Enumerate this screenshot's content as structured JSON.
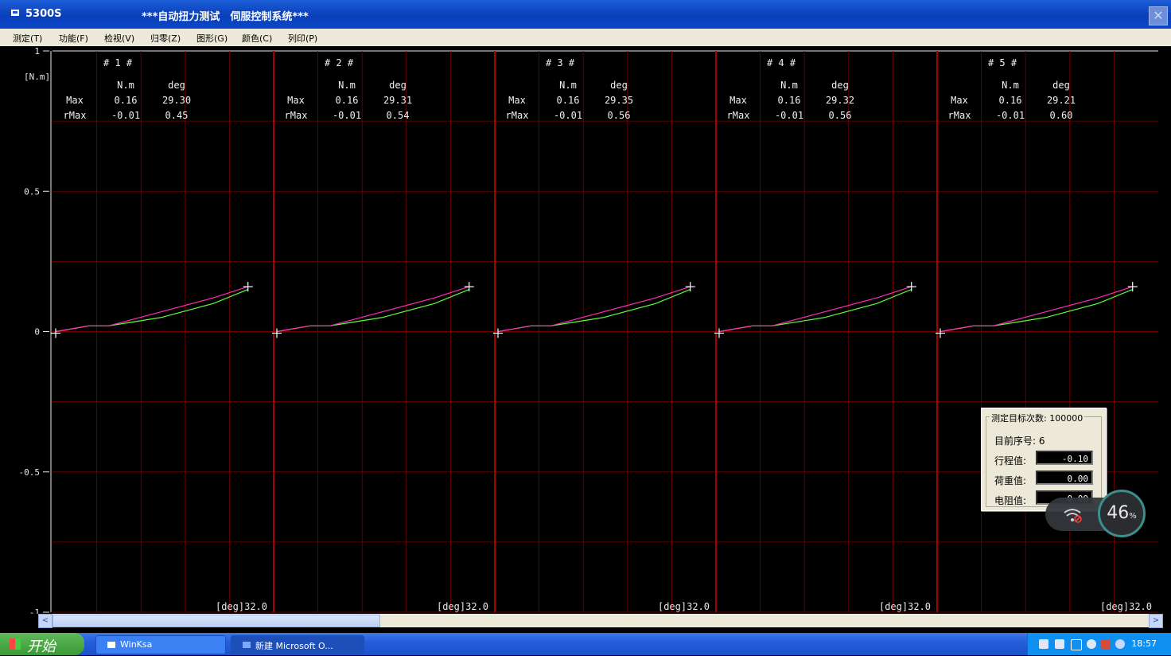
{
  "window": {
    "title": "5300S",
    "caption": "***自动扭力测试　伺服控制系统***",
    "close_glyph": "✕"
  },
  "menu": [
    "测定(T)",
    "功能(F)",
    "检视(V)",
    "归零(Z)",
    "图形(G)",
    "颜色(C)",
    "列印(P)"
  ],
  "plot": {
    "y_unit": "[N.m]",
    "y_ticks": [
      "1",
      "0.5",
      "0",
      "-0.5",
      "-1"
    ],
    "x_label": "[deg]32.0",
    "col_unit_torque": "N.m",
    "col_unit_angle": "deg",
    "row_max": "Max",
    "row_rmax": "rMax",
    "colors": {
      "grid": "#7a0000",
      "divider": "#a80000",
      "curve_a": "#ff2db4",
      "curve_b": "#5aff3a",
      "marker": "#ffffff"
    },
    "panels": [
      {
        "label": "# 1 #",
        "max_nm": "0.16",
        "max_deg": "29.30",
        "rmax_nm": "-0.01",
        "rmax_deg": "0.45"
      },
      {
        "label": "# 2 #",
        "max_nm": "0.16",
        "max_deg": "29.31",
        "rmax_nm": "-0.01",
        "rmax_deg": "0.54"
      },
      {
        "label": "# 3 #",
        "max_nm": "0.16",
        "max_deg": "29.35",
        "rmax_nm": "-0.01",
        "rmax_deg": "0.56"
      },
      {
        "label": "# 4 #",
        "max_nm": "0.16",
        "max_deg": "29.32",
        "rmax_nm": "-0.01",
        "rmax_deg": "0.56"
      },
      {
        "label": "# 5 #",
        "max_nm": "0.16",
        "max_deg": "29.21",
        "rmax_nm": "-0.01",
        "rmax_deg": "0.60"
      }
    ]
  },
  "chart_data": {
    "type": "line",
    "ylabel": "[N.m]",
    "ylim": [
      -1,
      1
    ],
    "xlabel": "[deg]32.0",
    "xlim": [
      0,
      32
    ],
    "series": [
      {
        "x": [
          0,
          5,
          8,
          16,
          24,
          29.3
        ],
        "y": [
          0,
          0.02,
          0.02,
          0.07,
          0.12,
          0.16
        ]
      },
      {
        "x": [
          0,
          5,
          8,
          16,
          24,
          29.3
        ],
        "y": [
          0,
          0.02,
          0.02,
          0.05,
          0.1,
          0.15
        ]
      }
    ]
  },
  "infobox": {
    "legend": "测定目标次数: 100000",
    "seq": "目前序号: 6",
    "stroke_label": "行程值:",
    "stroke_value": "-0.10",
    "load_label": "荷重值:",
    "load_value": "0.00",
    "res_label": "电阻值:",
    "res_value": "0.00"
  },
  "battery": {
    "percent": "46",
    "unit": "%"
  },
  "scrollbar": {
    "left": "<",
    "right": ">"
  },
  "taskbar": {
    "start": "开始",
    "tasks": [
      "WinKsa",
      "新建 Microsoft O..."
    ],
    "clock": "18:57"
  }
}
